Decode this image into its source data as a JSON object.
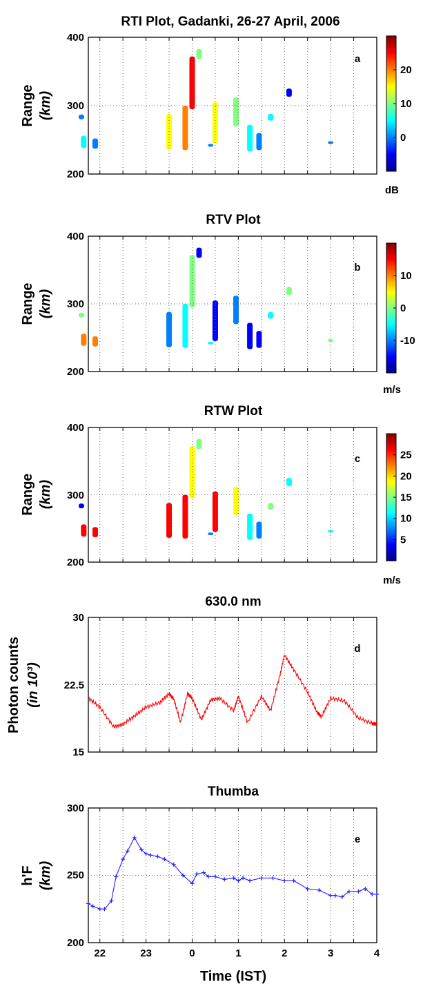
{
  "chart_data": [
    {
      "id": "a",
      "type": "heatmap",
      "title": "RTI Plot, Gadanki, 26-27 April, 2006",
      "panel_letter": "a",
      "ylabel": "Range",
      "ylabel_unit": "(km)",
      "ylim": [
        200,
        400
      ],
      "yticks": [
        "200",
        "300",
        "400"
      ],
      "xlim": [
        21.75,
        28
      ],
      "colorbar": {
        "unit": "dB",
        "range": [
          -10,
          30
        ],
        "ticks": [
          "0",
          "10",
          "20"
        ],
        "colors": [
          "#00008f",
          "#0000ff",
          "#0080ff",
          "#00ffff",
          "#80ff80",
          "#ffff00",
          "#ff8000",
          "#ff0000",
          "#800000"
        ]
      },
      "echoes": [
        {
          "t": 21.6,
          "r0": 280,
          "r1": 287,
          "v": 2
        },
        {
          "t": 21.65,
          "r0": 238,
          "r1": 256,
          "v": 4
        },
        {
          "t": 21.9,
          "r0": 237,
          "r1": 252,
          "v": 2
        },
        {
          "t": 23.5,
          "r0": 236,
          "r1": 288,
          "v": 16
        },
        {
          "t": 23.85,
          "r0": 235,
          "r1": 300,
          "v": 18
        },
        {
          "t": 24.0,
          "r0": 295,
          "r1": 372,
          "v": 24
        },
        {
          "t": 24.15,
          "r0": 368,
          "r1": 383,
          "v": 8
        },
        {
          "t": 24.5,
          "r0": 245,
          "r1": 305,
          "v": 16
        },
        {
          "t": 24.95,
          "r0": 270,
          "r1": 312,
          "v": 8
        },
        {
          "t": 25.25,
          "r0": 233,
          "r1": 272,
          "v": 6
        },
        {
          "t": 25.45,
          "r0": 235,
          "r1": 260,
          "v": -2
        },
        {
          "t": 25.7,
          "r0": 278,
          "r1": 288,
          "v": 4
        },
        {
          "t": 26.1,
          "r0": 313,
          "r1": 325,
          "v": -4
        },
        {
          "t": 24.4,
          "r0": 240,
          "r1": 244,
          "v": 2
        },
        {
          "t": 27.0,
          "r0": 244,
          "r1": 248,
          "v": 0
        }
      ]
    },
    {
      "id": "b",
      "type": "heatmap",
      "title": "RTV Plot",
      "panel_letter": "b",
      "ylabel": "Range",
      "ylabel_unit": "(km)",
      "ylim": [
        200,
        400
      ],
      "yticks": [
        "200",
        "300",
        "400"
      ],
      "xlim": [
        21.75,
        28
      ],
      "colorbar": {
        "unit": "m/s",
        "range": [
          -20,
          20
        ],
        "ticks": [
          "-10",
          "0",
          "10"
        ],
        "colors": [
          "#00008f",
          "#0000ff",
          "#0080ff",
          "#00ffff",
          "#80ff80",
          "#ffff00",
          "#ff8000",
          "#ff0000",
          "#800000"
        ]
      },
      "echoes": [
        {
          "t": 21.6,
          "r0": 280,
          "r1": 287,
          "v": 0
        },
        {
          "t": 21.65,
          "r0": 238,
          "r1": 256,
          "v": 12
        },
        {
          "t": 21.9,
          "r0": 237,
          "r1": 252,
          "v": 8
        },
        {
          "t": 23.5,
          "r0": 236,
          "r1": 288,
          "v": -8
        },
        {
          "t": 23.85,
          "r0": 235,
          "r1": 300,
          "v": -4
        },
        {
          "t": 24.0,
          "r0": 295,
          "r1": 372,
          "v": -2
        },
        {
          "t": 24.15,
          "r0": 368,
          "r1": 383,
          "v": -16
        },
        {
          "t": 24.5,
          "r0": 245,
          "r1": 305,
          "v": -16
        },
        {
          "t": 24.95,
          "r0": 270,
          "r1": 312,
          "v": -12
        },
        {
          "t": 25.25,
          "r0": 233,
          "r1": 272,
          "v": -14
        },
        {
          "t": 25.45,
          "r0": 235,
          "r1": 260,
          "v": -14
        },
        {
          "t": 25.7,
          "r0": 278,
          "r1": 288,
          "v": -6
        },
        {
          "t": 26.1,
          "r0": 313,
          "r1": 325,
          "v": -2
        },
        {
          "t": 24.4,
          "r0": 240,
          "r1": 244,
          "v": -6
        },
        {
          "t": 27.0,
          "r0": 244,
          "r1": 248,
          "v": 2
        }
      ]
    },
    {
      "id": "c",
      "type": "heatmap",
      "title": "RTW Plot",
      "panel_letter": "c",
      "ylabel": "Range",
      "ylabel_unit": "(km)",
      "ylim": [
        200,
        400
      ],
      "yticks": [
        "200",
        "300",
        "400"
      ],
      "xlim": [
        21.75,
        28
      ],
      "colorbar": {
        "unit": "m/s",
        "range": [
          0,
          30
        ],
        "ticks": [
          "5",
          "10",
          "15",
          "20",
          "25"
        ],
        "colors": [
          "#00008f",
          "#0000ff",
          "#0080ff",
          "#00ffff",
          "#80ff80",
          "#ffff00",
          "#ff8000",
          "#ff0000",
          "#800000"
        ]
      },
      "echoes": [
        {
          "t": 21.6,
          "r0": 280,
          "r1": 287,
          "v": 4
        },
        {
          "t": 21.65,
          "r0": 238,
          "r1": 256,
          "v": 27
        },
        {
          "t": 21.9,
          "r0": 237,
          "r1": 252,
          "v": 27
        },
        {
          "t": 23.5,
          "r0": 236,
          "r1": 288,
          "v": 25
        },
        {
          "t": 23.85,
          "r0": 235,
          "r1": 300,
          "v": 28
        },
        {
          "t": 24.0,
          "r0": 295,
          "r1": 372,
          "v": 20
        },
        {
          "t": 24.15,
          "r0": 368,
          "r1": 383,
          "v": 15
        },
        {
          "t": 24.5,
          "r0": 245,
          "r1": 305,
          "v": 26
        },
        {
          "t": 24.95,
          "r0": 270,
          "r1": 312,
          "v": 18
        },
        {
          "t": 25.25,
          "r0": 233,
          "r1": 272,
          "v": 10
        },
        {
          "t": 25.45,
          "r0": 235,
          "r1": 260,
          "v": 8
        },
        {
          "t": 25.7,
          "r0": 278,
          "r1": 288,
          "v": 14
        },
        {
          "t": 26.1,
          "r0": 313,
          "r1": 325,
          "v": 12
        },
        {
          "t": 24.4,
          "r0": 240,
          "r1": 244,
          "v": 8
        },
        {
          "t": 27.0,
          "r0": 244,
          "r1": 248,
          "v": 12
        }
      ]
    },
    {
      "id": "d",
      "type": "line",
      "title": "630.0 nm",
      "panel_letter": "d",
      "ylabel": "Photon counts",
      "ylabel_unit": "(in 10³)",
      "ylim": [
        15,
        30
      ],
      "yticks": [
        "15",
        "22.5",
        "30"
      ],
      "xlim": [
        21.75,
        28
      ],
      "color": "#ff0000",
      "x": [
        21.75,
        22.0,
        22.3,
        22.5,
        22.75,
        23.0,
        23.3,
        23.5,
        23.6,
        23.75,
        23.9,
        24.0,
        24.2,
        24.4,
        24.6,
        24.9,
        25.0,
        25.2,
        25.5,
        25.7,
        25.9,
        26.0,
        26.2,
        26.5,
        26.7,
        26.8,
        27.0,
        27.3,
        27.6,
        27.9,
        28.0
      ],
      "values": [
        21.0,
        20.0,
        17.8,
        18.1,
        19.0,
        20.0,
        20.5,
        21.5,
        20.9,
        18.3,
        21.5,
        21.0,
        18.6,
        20.8,
        21.0,
        19.6,
        21.2,
        18.3,
        21.2,
        19.6,
        23.5,
        25.8,
        24.2,
        21.7,
        19.5,
        18.9,
        21.0,
        20.7,
        18.8,
        18.2,
        18.1
      ]
    },
    {
      "id": "e",
      "type": "line",
      "title": "Thumba",
      "panel_letter": "e",
      "ylabel": "h'F",
      "ylabel_unit": "(km)",
      "ylim": [
        200,
        300
      ],
      "yticks": [
        "200",
        "250",
        "300"
      ],
      "xlim": [
        21.75,
        28
      ],
      "xticks": [
        "22",
        "23",
        "0",
        "1",
        "2",
        "3",
        "4"
      ],
      "xlabel": "Time (IST)",
      "color": "#1f1fff",
      "x": [
        21.75,
        21.85,
        22.0,
        22.1,
        22.25,
        22.35,
        22.5,
        22.6,
        22.75,
        22.9,
        23.0,
        23.1,
        23.25,
        23.4,
        23.6,
        23.8,
        24.0,
        24.1,
        24.25,
        24.35,
        24.5,
        24.7,
        24.9,
        25.0,
        25.1,
        25.25,
        25.5,
        25.75,
        26.0,
        26.2,
        26.5,
        26.75,
        27.0,
        27.1,
        27.25,
        27.4,
        27.6,
        27.75,
        27.9,
        28.0
      ],
      "values": [
        229,
        227,
        225,
        225,
        231,
        249,
        262,
        268,
        278,
        269,
        266,
        265,
        264,
        262,
        258,
        250,
        244,
        251,
        252,
        249,
        249,
        247,
        248,
        246,
        248,
        246,
        248,
        248,
        246,
        246,
        240,
        239,
        235,
        235,
        234,
        238,
        238,
        240,
        236,
        236
      ]
    }
  ]
}
